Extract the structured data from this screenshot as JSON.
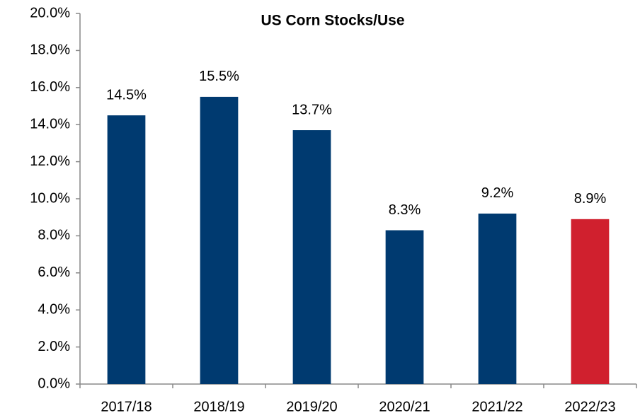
{
  "chart_data": {
    "type": "bar",
    "title": "US Corn Stocks/Use",
    "categories": [
      "2017/18",
      "2018/19",
      "2019/20",
      "2020/21",
      "2021/22",
      "2022/23"
    ],
    "values": [
      14.5,
      15.5,
      13.7,
      8.3,
      9.2,
      8.9
    ],
    "value_labels": [
      "14.5%",
      "15.5%",
      "13.7%",
      "8.3%",
      "9.2%",
      "8.9%"
    ],
    "colors": [
      "#003a70",
      "#003a70",
      "#003a70",
      "#003a70",
      "#003a70",
      "#d0202e"
    ],
    "ylim": [
      0,
      20
    ],
    "yticks": [
      {
        "value": 0,
        "label": "0.0%"
      },
      {
        "value": 2,
        "label": "2.0%"
      },
      {
        "value": 4,
        "label": "4.0%"
      },
      {
        "value": 6,
        "label": "6.0%"
      },
      {
        "value": 8,
        "label": "8.0%"
      },
      {
        "value": 10,
        "label": "10.0%"
      },
      {
        "value": 12,
        "label": "12.0%"
      },
      {
        "value": 14,
        "label": "14.0%"
      },
      {
        "value": 16,
        "label": "16.0%"
      },
      {
        "value": 18,
        "label": "18.0%"
      },
      {
        "value": 20,
        "label": "20.0%"
      }
    ],
    "grid": false
  }
}
